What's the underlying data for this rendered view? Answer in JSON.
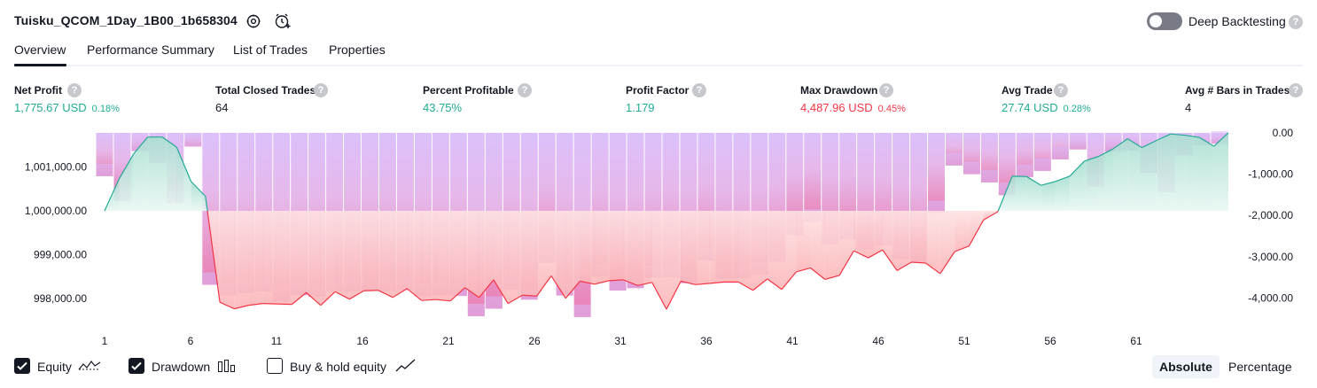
{
  "header": {
    "title": "Tuisku_QCOM_1Day_1B00_1b658304",
    "deep_backtesting_label": "Deep Backtesting",
    "help_glyph": "?"
  },
  "tabs": [
    {
      "label": "Overview"
    },
    {
      "label": "Performance Summary"
    },
    {
      "label": "List of Trades"
    },
    {
      "label": "Properties"
    }
  ],
  "metrics": {
    "net_profit": {
      "label": "Net Profit",
      "value": "1,775.67 USD",
      "pct": "0.18%"
    },
    "total_closed_trades": {
      "label": "Total Closed Trades",
      "value": "64"
    },
    "percent_profitable": {
      "label": "Percent Profitable",
      "value": "43.75%"
    },
    "profit_factor": {
      "label": "Profit Factor",
      "value": "1.179"
    },
    "max_drawdown": {
      "label": "Max Drawdown",
      "value": "4,487.96 USD",
      "pct": "0.45%"
    },
    "avg_trade": {
      "label": "Avg Trade",
      "value": "27.74 USD",
      "pct": "0.28%"
    },
    "avg_bars": {
      "label": "Avg # Bars in Trades",
      "value": "4"
    }
  },
  "colors": {
    "positive": "#22ab94",
    "negative": "#f23645",
    "drawdown_bar": "#d8b8f8",
    "equity_line_up": "#22ab94",
    "equity_line_down": "#f23645"
  },
  "legend": {
    "equity": {
      "label": "Equity",
      "checked": true
    },
    "drawdown": {
      "label": "Drawdown",
      "checked": true
    },
    "buy_hold": {
      "label": "Buy & hold equity",
      "checked": false
    }
  },
  "scale_toggle": {
    "absolute": "Absolute",
    "percentage": "Percentage",
    "selected": "Absolute"
  },
  "chart_data": {
    "type": "line",
    "x_ticks": [
      "1",
      "6",
      "11",
      "16",
      "21",
      "26",
      "31",
      "36",
      "41",
      "46",
      "51",
      "56",
      "61"
    ],
    "left_axis": {
      "ticks": [
        "1,001,000.00",
        "1,000,000.00",
        "999,000.00",
        "998,000.00"
      ],
      "tick_values": [
        1001000,
        1000000,
        999000,
        998000
      ]
    },
    "right_axis": {
      "ticks": [
        "0.00",
        "-1,000.00",
        "-2,000.00",
        "-3,000.00",
        "-4,000.00"
      ],
      "tick_values": [
        0,
        -1000,
        -2000,
        -3000,
        -4000
      ]
    },
    "baseline": 1000000,
    "series": [
      {
        "name": "Equity",
        "axis": "left",
        "values": [
          1000000,
          1000720,
          1001290,
          1001680,
          1001680,
          1001450,
          1000670,
          1000330,
          997920,
          997770,
          997850,
          997890,
          997880,
          997870,
          998140,
          997850,
          998160,
          997990,
          998180,
          998190,
          998030,
          998230,
          997960,
          997980,
          997950,
          998250,
          998030,
          998430,
          997890,
          998080,
          998060,
          998520,
          998010,
          998400,
          998330,
          998410,
          998430,
          998300,
          998370,
          997760,
          998400,
          998320,
          998350,
          998380,
          998380,
          998190,
          998450,
          998210,
          998610,
          998700,
          998440,
          998530,
          999090,
          998930,
          999110,
          998640,
          998830,
          998810,
          998570,
          999070,
          999200,
          999790,
          999980,
          1000790,
          1000780,
          1000580,
          1000670,
          1000790,
          1001130,
          1001240,
          1001410,
          1001640,
          1001440,
          1001600,
          1001750,
          1001720,
          1001670,
          1001470,
          1001776
        ]
      },
      {
        "name": "Drawdown",
        "axis": "right",
        "values": [
          -1050,
          -1650,
          -440,
          -720,
          -1700,
          -330,
          -3680,
          -3940,
          -3880,
          -3840,
          -4080,
          -3930,
          -3970,
          -3830,
          -3840,
          -3820,
          -3830,
          -3810,
          -3960,
          -3930,
          -3950,
          -4440,
          -4260,
          -3800,
          -4040,
          -3150,
          -3940,
          -4460,
          -3480,
          -3820,
          -3760,
          -3510,
          -3500,
          -3640,
          -3090,
          -3530,
          -3520,
          -3440,
          -3120,
          -2490,
          -2150,
          -2700,
          -2580,
          -2820,
          -2720,
          -3060,
          -3140,
          -1940,
          -790,
          -1000,
          -1200,
          -1510,
          -1070,
          -920,
          -640,
          -400,
          -1300,
          -460,
          -430,
          -970,
          -1430,
          -540,
          -300,
          -260
        ]
      }
    ]
  }
}
